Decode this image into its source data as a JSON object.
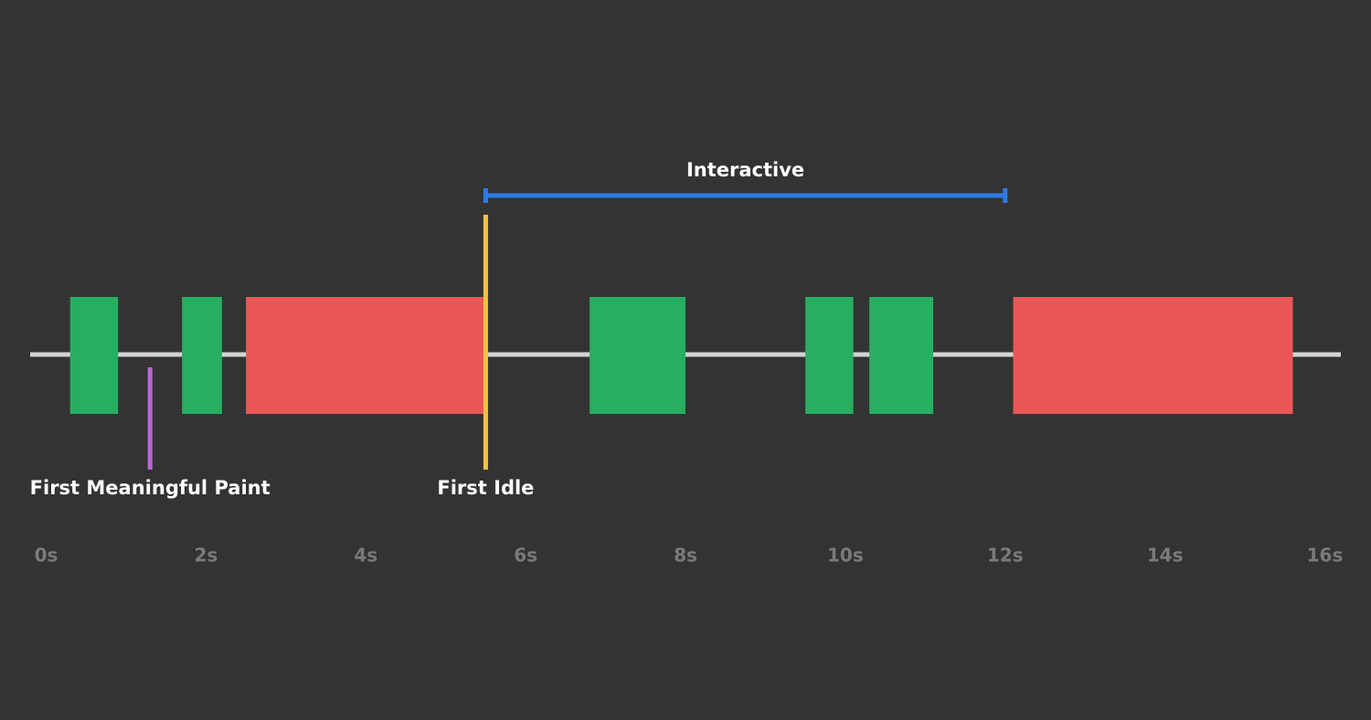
{
  "chart_data": {
    "type": "timeline",
    "xlim": [
      -0.2,
      16.2
    ],
    "xticks": [
      {
        "value": 0,
        "label": "0s"
      },
      {
        "value": 2,
        "label": "2s"
      },
      {
        "value": 4,
        "label": "4s"
      },
      {
        "value": 6,
        "label": "6s"
      },
      {
        "value": 8,
        "label": "8s"
      },
      {
        "value": 10,
        "label": "10s"
      },
      {
        "value": 12,
        "label": "12s"
      },
      {
        "value": 14,
        "label": "14s"
      },
      {
        "value": 16,
        "label": "16s"
      }
    ],
    "axis_color": "#d4d4d4",
    "tasks": [
      {
        "start": 0.3,
        "end": 0.9,
        "color": "#27ae60"
      },
      {
        "start": 1.7,
        "end": 2.2,
        "color": "#27ae60"
      },
      {
        "start": 2.5,
        "end": 5.5,
        "color": "#eb5757"
      },
      {
        "start": 6.8,
        "end": 8.0,
        "color": "#27ae60"
      },
      {
        "start": 9.5,
        "end": 10.1,
        "color": "#27ae60"
      },
      {
        "start": 10.3,
        "end": 11.1,
        "color": "#27ae60"
      },
      {
        "start": 12.1,
        "end": 15.6,
        "color": "#eb5757"
      }
    ],
    "markers": [
      {
        "label": "First Meaningful Paint",
        "x": 1.3,
        "color": "#b967db"
      },
      {
        "label": "First Idle",
        "x": 5.5,
        "color": "#f5c242"
      }
    ],
    "span": {
      "label": "Interactive",
      "start": 5.5,
      "end": 12.0,
      "color": "#2f7ae5"
    }
  }
}
